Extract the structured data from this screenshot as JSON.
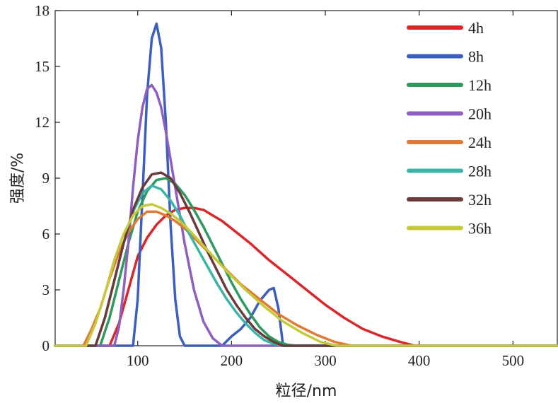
{
  "chart_data": {
    "type": "line",
    "title": "",
    "xlabel": "粒径/nm",
    "ylabel": "强度/%",
    "xlim": [
      12,
      548
    ],
    "ylim": [
      0,
      18
    ],
    "xticks": [
      100,
      200,
      300,
      400,
      500
    ],
    "xtick_labels": [
      "100",
      "200",
      "300",
      "400",
      "500"
    ],
    "yticks": [
      0,
      3,
      6,
      9,
      12,
      15,
      18
    ],
    "ytick_labels": [
      "0",
      "3",
      "6",
      "9",
      "12",
      "15",
      "18"
    ],
    "grid": false,
    "legend_position": "top-right",
    "series": [
      {
        "name": "4h",
        "color": "#d9262b",
        "x": [
          12,
          70,
          80,
          90,
          100,
          110,
          120,
          130,
          140,
          150,
          160,
          170,
          180,
          190,
          200,
          220,
          240,
          260,
          280,
          300,
          320,
          340,
          360,
          380,
          395,
          548
        ],
        "y": [
          0,
          0,
          1.2,
          3.0,
          4.8,
          5.8,
          6.5,
          7.0,
          7.3,
          7.4,
          7.4,
          7.3,
          7.0,
          6.7,
          6.3,
          5.5,
          4.6,
          3.8,
          3.0,
          2.2,
          1.5,
          0.9,
          0.5,
          0.2,
          0,
          0
        ]
      },
      {
        "name": "8h",
        "color": "#3a5fbf",
        "x": [
          12,
          95,
          100,
          105,
          110,
          115,
          120,
          125,
          130,
          135,
          140,
          145,
          150,
          190,
          200,
          210,
          220,
          230,
          240,
          245,
          250,
          255,
          548
        ],
        "y": [
          0,
          0,
          2.5,
          8.0,
          13.5,
          16.5,
          17.3,
          16.0,
          12.0,
          6.5,
          2.5,
          0.5,
          0,
          0,
          0.5,
          0.9,
          1.5,
          2.4,
          3.0,
          3.1,
          2.0,
          0,
          0
        ]
      },
      {
        "name": "12h",
        "color": "#2f9a5f",
        "x": [
          12,
          60,
          70,
          80,
          90,
          100,
          110,
          120,
          130,
          140,
          150,
          160,
          170,
          180,
          190,
          200,
          210,
          220,
          230,
          240,
          250,
          260,
          270,
          548
        ],
        "y": [
          0,
          0,
          1.5,
          3.5,
          5.5,
          7.2,
          8.3,
          8.9,
          9.0,
          8.7,
          8.1,
          7.3,
          6.4,
          5.4,
          4.4,
          3.4,
          2.5,
          1.7,
          1.0,
          0.5,
          0.2,
          0.05,
          0,
          0
        ]
      },
      {
        "name": "20h",
        "color": "#8e5fc0",
        "x": [
          12,
          75,
          80,
          85,
          90,
          95,
          100,
          105,
          110,
          115,
          120,
          125,
          130,
          140,
          150,
          160,
          170,
          180,
          190,
          200,
          548
        ],
        "y": [
          0,
          0,
          1.0,
          3.0,
          5.5,
          8.5,
          11.0,
          12.8,
          13.8,
          14.0,
          13.6,
          12.8,
          11.5,
          8.5,
          5.5,
          3.0,
          1.3,
          0.4,
          0,
          0,
          0
        ]
      },
      {
        "name": "24h",
        "color": "#e07a34",
        "x": [
          12,
          42,
          50,
          60,
          70,
          80,
          90,
          100,
          110,
          120,
          130,
          140,
          150,
          170,
          190,
          210,
          230,
          250,
          270,
          290,
          310,
          328,
          548
        ],
        "y": [
          0,
          0,
          0.8,
          2.0,
          3.6,
          5.0,
          6.1,
          6.8,
          7.2,
          7.2,
          7.0,
          6.7,
          6.3,
          5.3,
          4.3,
          3.3,
          2.5,
          1.7,
          1.1,
          0.6,
          0.2,
          0,
          0
        ]
      },
      {
        "name": "28h",
        "color": "#3ab5a6",
        "x": [
          12,
          55,
          65,
          75,
          85,
          95,
          105,
          115,
          125,
          135,
          145,
          155,
          165,
          175,
          185,
          195,
          205,
          215,
          225,
          235,
          245,
          255,
          548
        ],
        "y": [
          0,
          0,
          1.5,
          3.5,
          5.5,
          7.2,
          8.2,
          8.6,
          8.4,
          7.8,
          7.0,
          6.0,
          5.1,
          4.2,
          3.3,
          2.5,
          1.8,
          1.2,
          0.7,
          0.3,
          0.1,
          0,
          0
        ]
      },
      {
        "name": "32h",
        "color": "#6b3a3a",
        "x": [
          12,
          55,
          65,
          75,
          85,
          95,
          105,
          115,
          125,
          135,
          145,
          155,
          165,
          175,
          185,
          195,
          205,
          215,
          225,
          235,
          245,
          255,
          548
        ],
        "y": [
          0,
          0,
          1.5,
          3.5,
          5.5,
          7.3,
          8.5,
          9.2,
          9.3,
          9.0,
          8.2,
          7.2,
          6.1,
          5.0,
          4.0,
          3.0,
          2.2,
          1.5,
          0.9,
          0.5,
          0.2,
          0,
          0
        ]
      },
      {
        "name": "36h",
        "color": "#c5c93a",
        "x": [
          12,
          45,
          55,
          65,
          75,
          85,
          95,
          105,
          115,
          125,
          135,
          145,
          155,
          175,
          195,
          215,
          235,
          255,
          275,
          295,
          312,
          548
        ],
        "y": [
          0,
          0,
          1.2,
          2.8,
          4.6,
          6.0,
          7.0,
          7.5,
          7.6,
          7.4,
          7.1,
          6.7,
          6.2,
          5.1,
          4.0,
          3.0,
          2.1,
          1.3,
          0.7,
          0.2,
          0,
          0
        ]
      }
    ]
  }
}
